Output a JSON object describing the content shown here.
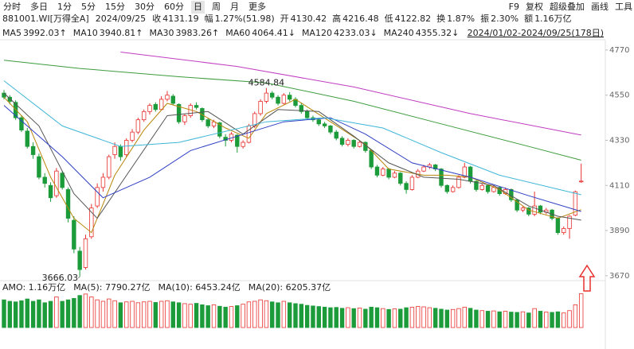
{
  "toolbar": {
    "tabs": [
      "分时",
      "多日",
      "1分",
      "5分",
      "15分",
      "30分",
      "60分",
      "日",
      "周",
      "月",
      "更多"
    ],
    "active": "日",
    "tools": [
      "F9",
      "复权",
      "超级叠加",
      "画线",
      "工具"
    ]
  },
  "quote": {
    "code": "881001.WI[万得全A]",
    "date": "2024/09/25",
    "fields": [
      {
        "label": "收",
        "value": "4131.19",
        "color": "#d9261c"
      },
      {
        "label": "幅",
        "value": "1.27%(51.98)",
        "color": "#d9261c"
      },
      {
        "label": "开",
        "value": "4130.42",
        "color": "#d9261c"
      },
      {
        "label": "高",
        "value": "4216.48",
        "color": "#d9261c"
      },
      {
        "label": "低",
        "value": "4122.82",
        "color": "#d9261c"
      },
      {
        "label": "换",
        "value": "1.87%",
        "color": "#222"
      },
      {
        "label": "振",
        "value": "2.30%",
        "color": "#222"
      },
      {
        "label": "额",
        "value": "1.16万亿",
        "color": "#222"
      }
    ]
  },
  "chart_data": {
    "type": "candlestick",
    "range_label": "2024/01/02-2024/09/25(178日)",
    "ylim": [
      3650,
      4820
    ],
    "yticks": [
      3670,
      3890,
      4110,
      4330,
      4550,
      4770
    ],
    "up_color": "#e8312f",
    "down_color": "#1c9b3a",
    "annotations": [
      "4584.84",
      "3666.03"
    ],
    "candles": [
      [
        4560,
        4575,
        4530,
        4540
      ],
      [
        4540,
        4550,
        4505,
        4520
      ],
      [
        4515,
        4525,
        4430,
        4440
      ],
      [
        4440,
        4450,
        4370,
        4380
      ],
      [
        4375,
        4390,
        4290,
        4300
      ],
      [
        4300,
        4320,
        4240,
        4260
      ],
      [
        4250,
        4265,
        4140,
        4150
      ],
      [
        4150,
        4170,
        4100,
        4120
      ],
      [
        4110,
        4125,
        4030,
        4050
      ],
      [
        4060,
        4195,
        4050,
        4180
      ],
      [
        4170,
        4180,
        4090,
        4100
      ],
      [
        4090,
        4100,
        3930,
        3950
      ],
      [
        3940,
        3960,
        3780,
        3800
      ],
      [
        3790,
        3810,
        3666.03,
        3700
      ],
      [
        3710,
        3870,
        3700,
        3850
      ],
      [
        3860,
        4020,
        3850,
        4000
      ],
      [
        4010,
        4120,
        4000,
        4100
      ],
      [
        4100,
        4170,
        4080,
        4150
      ],
      [
        4150,
        4260,
        4140,
        4250
      ],
      [
        4260,
        4320,
        4240,
        4300
      ],
      [
        4300,
        4310,
        4230,
        4250
      ],
      [
        4260,
        4340,
        4250,
        4330
      ],
      [
        4330,
        4385,
        4320,
        4370
      ],
      [
        4370,
        4440,
        4360,
        4430
      ],
      [
        4430,
        4480,
        4420,
        4470
      ],
      [
        4470,
        4510,
        4455,
        4500
      ],
      [
        4505,
        4515,
        4470,
        4480
      ],
      [
        4480,
        4545,
        4475,
        4530
      ],
      [
        4530,
        4570,
        4520,
        4550
      ],
      [
        4545,
        4555,
        4500,
        4510
      ],
      [
        4505,
        4510,
        4410,
        4420
      ],
      [
        4420,
        4460,
        4405,
        4450
      ],
      [
        4450,
        4510,
        4440,
        4500
      ],
      [
        4500,
        4515,
        4480,
        4490
      ],
      [
        4485,
        4490,
        4420,
        4430
      ],
      [
        4430,
        4440,
        4390,
        4400
      ],
      [
        4400,
        4430,
        4390,
        4420
      ],
      [
        4415,
        4420,
        4340,
        4350
      ],
      [
        4345,
        4360,
        4300,
        4330
      ],
      [
        4330,
        4370,
        4320,
        4360
      ],
      [
        4355,
        4360,
        4270,
        4300
      ],
      [
        4300,
        4330,
        4290,
        4320
      ],
      [
        4320,
        4410,
        4315,
        4400
      ],
      [
        4400,
        4470,
        4390,
        4460
      ],
      [
        4460,
        4530,
        4450,
        4520
      ],
      [
        4520,
        4584.84,
        4510,
        4560
      ],
      [
        4560,
        4570,
        4530,
        4540
      ],
      [
        4540,
        4550,
        4500,
        4510
      ],
      [
        4510,
        4560,
        4505,
        4550
      ],
      [
        4550,
        4565,
        4520,
        4530
      ],
      [
        4530,
        4540,
        4490,
        4500
      ],
      [
        4500,
        4510,
        4460,
        4470
      ],
      [
        4470,
        4480,
        4430,
        4440
      ],
      [
        4440,
        4450,
        4420,
        4430
      ],
      [
        4430,
        4440,
        4400,
        4410
      ],
      [
        4410,
        4420,
        4390,
        4400
      ],
      [
        4400,
        4405,
        4360,
        4370
      ],
      [
        4370,
        4380,
        4330,
        4340
      ],
      [
        4340,
        4350,
        4300,
        4310
      ],
      [
        4310,
        4340,
        4300,
        4330
      ],
      [
        4330,
        4335,
        4290,
        4300
      ],
      [
        4300,
        4330,
        4295,
        4320
      ],
      [
        4320,
        4325,
        4270,
        4280
      ],
      [
        4280,
        4285,
        4190,
        4200
      ],
      [
        4200,
        4210,
        4150,
        4160
      ],
      [
        4160,
        4200,
        4155,
        4190
      ],
      [
        4190,
        4195,
        4140,
        4150
      ],
      [
        4150,
        4180,
        4145,
        4170
      ],
      [
        4170,
        4175,
        4110,
        4120
      ],
      [
        4120,
        4130,
        4070,
        4090
      ],
      [
        4090,
        4160,
        4085,
        4150
      ],
      [
        4150,
        4190,
        4145,
        4180
      ],
      [
        4180,
        4210,
        4175,
        4200
      ],
      [
        4200,
        4220,
        4190,
        4210
      ],
      [
        4210,
        4215,
        4180,
        4190
      ],
      [
        4190,
        4195,
        4100,
        4110
      ],
      [
        4110,
        4115,
        4070,
        4080
      ],
      [
        4080,
        4110,
        4075,
        4100
      ],
      [
        4100,
        4160,
        4095,
        4150
      ],
      [
        4150,
        4220,
        4145,
        4200
      ],
      [
        4200,
        4205,
        4120,
        4130
      ],
      [
        4130,
        4135,
        4080,
        4090
      ],
      [
        4090,
        4120,
        4085,
        4110
      ],
      [
        4110,
        4115,
        4070,
        4080
      ],
      [
        4080,
        4110,
        4075,
        4100
      ],
      [
        4100,
        4105,
        4060,
        4070
      ],
      [
        4070,
        4100,
        4065,
        4090
      ],
      [
        4090,
        4095,
        4030,
        4040
      ],
      [
        4040,
        4045,
        3980,
        3990
      ],
      [
        3990,
        4010,
        3980,
        4000
      ],
      [
        4000,
        4005,
        3960,
        3970
      ],
      [
        3970,
        4080,
        3960,
        4010
      ],
      [
        4010,
        4015,
        3970,
        3980
      ],
      [
        3980,
        4000,
        3970,
        3990
      ],
      [
        3990,
        3995,
        3940,
        3950
      ],
      [
        3950,
        3955,
        3870,
        3880
      ],
      [
        3880,
        3910,
        3870,
        3900
      ],
      [
        3900,
        3965,
        3850,
        3960
      ],
      [
        3965,
        4085,
        3960,
        4079.21
      ],
      [
        4130.42,
        4216.48,
        4122.82,
        4131.19
      ]
    ],
    "ma_lines": [
      {
        "name": "MA5",
        "label": "3992.03↑",
        "color": "#b8860b",
        "x": [
          0,
          4,
          8,
          12,
          15,
          19,
          24,
          28,
          33,
          38,
          42,
          45,
          50,
          56,
          62,
          66,
          72,
          76,
          80,
          85,
          90,
          95,
          99
        ],
        "values": [
          4540,
          4420,
          4150,
          3950,
          3880,
          4160,
          4380,
          4510,
          4470,
          4390,
          4340,
          4460,
          4530,
          4420,
          4310,
          4190,
          4160,
          4160,
          4150,
          4090,
          3990,
          3950,
          3992.03
        ]
      },
      {
        "name": "MA10",
        "label": "3940.81↑",
        "color": "#555555",
        "x": [
          0,
          6,
          12,
          16,
          22,
          28,
          35,
          41,
          47,
          54,
          60,
          66,
          72,
          78,
          84,
          90,
          95,
          99
        ],
        "values": [
          4560,
          4400,
          4070,
          3950,
          4200,
          4450,
          4470,
          4360,
          4480,
          4470,
          4350,
          4220,
          4150,
          4140,
          4110,
          4010,
          3960,
          3940.81
        ]
      },
      {
        "name": "MA30",
        "label": "3983.26↑",
        "color": "#2f3fc4",
        "x": [
          0,
          10,
          17,
          25,
          32,
          40,
          48,
          56,
          62,
          70,
          80,
          90,
          99
        ],
        "values": [
          4500,
          4250,
          4050,
          4150,
          4280,
          4350,
          4420,
          4440,
          4360,
          4220,
          4150,
          4060,
          3983.26
        ]
      },
      {
        "name": "MA60",
        "label": "4064.41↓",
        "color": "#3fb6d8",
        "x": [
          0,
          10,
          20,
          30,
          45,
          55,
          65,
          75,
          85,
          99
        ],
        "values": [
          4620,
          4400,
          4300,
          4320,
          4420,
          4440,
          4390,
          4270,
          4160,
          4064.41
        ]
      },
      {
        "name": "MA120",
        "label": "4233.03↓",
        "color": "#3c9c3c",
        "x": [
          0,
          13,
          30,
          45,
          60,
          75,
          90,
          99
        ],
        "values": [
          4720,
          4680,
          4640,
          4610,
          4520,
          4410,
          4300,
          4233.03
        ]
      },
      {
        "name": "MA240",
        "label": "4355.32↓",
        "color": "#c03cc0",
        "x": [
          20,
          40,
          60,
          80,
          99
        ],
        "values": [
          4760,
          4690,
          4590,
          4460,
          4355.32
        ]
      }
    ],
    "volume": {
      "ylim": [
        0,
        12000
      ],
      "header": [
        {
          "text": "AMO: 1.16万亿",
          "color": "#222"
        },
        {
          "text": "MA(5): 7790.27亿",
          "color": "#555"
        },
        {
          "text": "MA(10): 6453.24亿",
          "color": "#d9261c"
        },
        {
          "text": "MA(20): 6205.37亿",
          "color": "#2f3fc4"
        }
      ],
      "values": [
        9500,
        9000,
        8800,
        9200,
        9800,
        9000,
        9500,
        8500,
        9000,
        10500,
        9000,
        9500,
        10000,
        11000,
        11500,
        10500,
        9500,
        9000,
        9800,
        9200,
        8500,
        8800,
        9000,
        8500,
        8800,
        9000,
        8600,
        9000,
        9200,
        8800,
        8500,
        8200,
        8000,
        8300,
        7800,
        7500,
        7800,
        7300,
        7000,
        7200,
        7500,
        8000,
        8800,
        9000,
        9500,
        9200,
        8800,
        8500,
        9000,
        8500,
        8200,
        8000,
        7600,
        7400,
        7200,
        7000,
        6800,
        6900,
        6600,
        6800,
        6500,
        6700,
        6300,
        7000,
        6800,
        6500,
        6200,
        6400,
        6300,
        6800,
        7000,
        7200,
        7100,
        6800,
        6600,
        6300,
        6000,
        6200,
        6500,
        7000,
        6600,
        6000,
        5800,
        5600,
        5700,
        5400,
        5600,
        5300,
        5200,
        5400,
        5000,
        6500,
        5600,
        5300,
        5200,
        5400,
        5000,
        5800,
        7800,
        11600
      ]
    }
  }
}
